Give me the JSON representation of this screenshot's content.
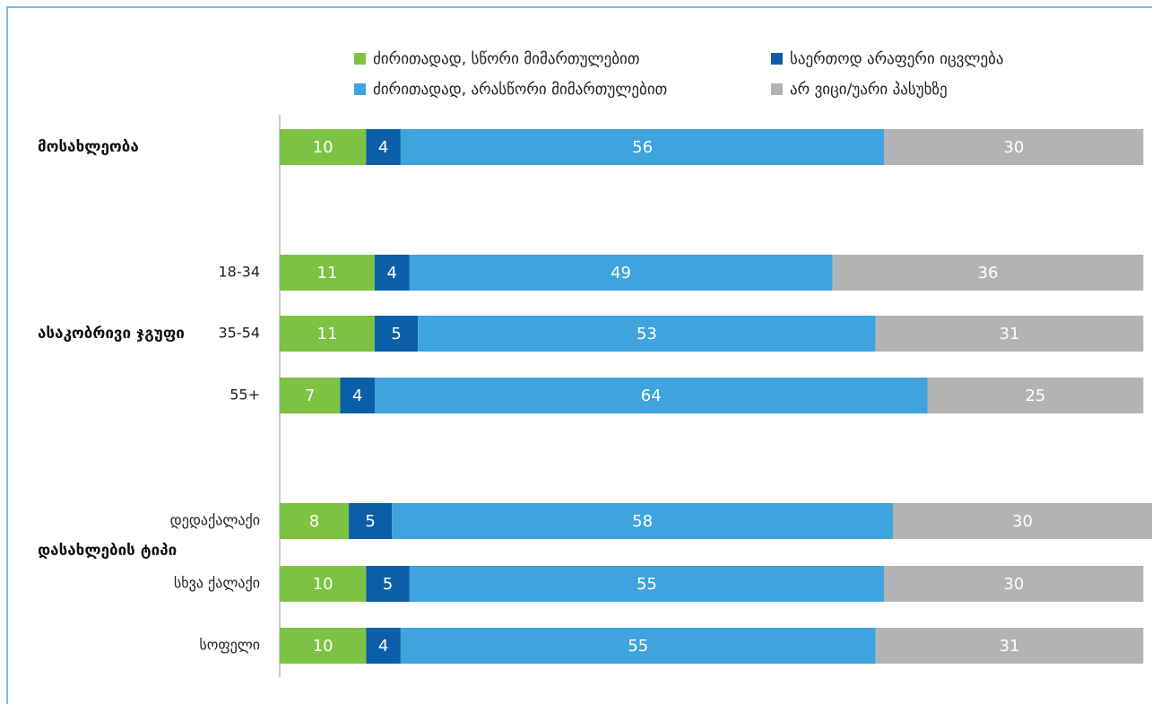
{
  "chart_data": {
    "type": "stacked_bar",
    "categories": [
      null,
      "18-34",
      "35-54",
      "55+",
      "დედაქალაქი",
      "სხვა ქალაქი",
      "სოფელი"
    ],
    "groups": [
      "მოსახლეობა",
      "ასაკობრივი ჯგუფი",
      "დასახლების ტიპი"
    ],
    "series": [
      {
        "name": "ძირითადად, სწორი მიმართულებით",
        "color": "#7dc242",
        "values": [
          10,
          11,
          11,
          7,
          8,
          10,
          10
        ]
      },
      {
        "name": "საერთოდ არაფერი იცვლება",
        "color": "#0b5ea8",
        "values": [
          4,
          4,
          5,
          4,
          5,
          5,
          4
        ]
      },
      {
        "name": "ძირითადად, არასწორი მიმართულებით",
        "color": "#3fa3dd",
        "values": [
          56,
          49,
          53,
          64,
          58,
          55,
          55
        ]
      },
      {
        "name": "არ ვიცი/უარი პასუხზე",
        "color": "#b3b3b3",
        "values": [
          30,
          36,
          31,
          25,
          30,
          30,
          31
        ]
      }
    ],
    "xlim": [
      0,
      101
    ]
  }
}
